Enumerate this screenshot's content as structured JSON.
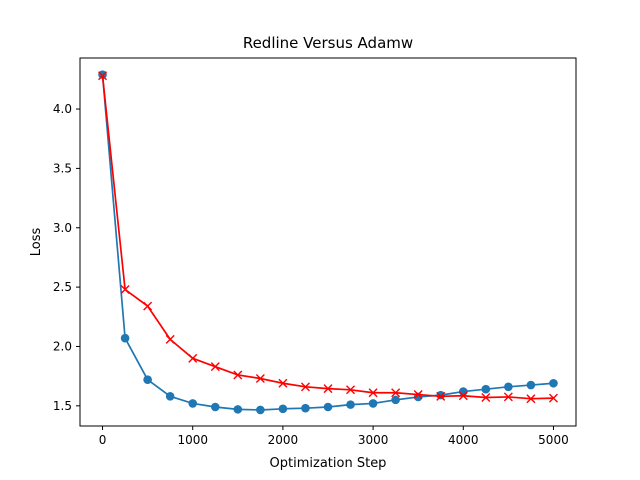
{
  "chart_data": {
    "type": "line",
    "title": "Redline Versus Adamw",
    "xlabel": "Optimization Step",
    "ylabel": "Loss",
    "xlim": [
      -250,
      5250
    ],
    "ylim": [
      1.33,
      4.43
    ],
    "xticks": [
      0,
      1000,
      2000,
      3000,
      4000,
      5000
    ],
    "yticks": [
      1.5,
      2.0,
      2.5,
      3.0,
      3.5,
      4.0
    ],
    "xtick_labels": [
      "0",
      "1000",
      "2000",
      "3000",
      "4000",
      "5000"
    ],
    "ytick_labels": [
      "1.5",
      "2.0",
      "2.5",
      "3.0",
      "3.5",
      "4.0"
    ],
    "grid": false,
    "x": [
      0,
      250,
      500,
      750,
      1000,
      1250,
      1500,
      1750,
      2000,
      2250,
      2500,
      2750,
      3000,
      3250,
      3500,
      3750,
      4000,
      4250,
      4500,
      4750,
      5000
    ],
    "series": [
      {
        "color": "#1f77b4",
        "marker": "circle",
        "values": [
          4.29,
          2.07,
          1.72,
          1.58,
          1.52,
          1.49,
          1.47,
          1.465,
          1.475,
          1.48,
          1.49,
          1.51,
          1.52,
          1.55,
          1.575,
          1.59,
          1.62,
          1.64,
          1.66,
          1.675,
          1.69
        ]
      },
      {
        "color": "#ff0000",
        "marker": "x",
        "values": [
          4.28,
          2.48,
          2.34,
          2.06,
          1.9,
          1.83,
          1.76,
          1.73,
          1.69,
          1.66,
          1.645,
          1.635,
          1.61,
          1.61,
          1.595,
          1.58,
          1.585,
          1.57,
          1.575,
          1.56,
          1.565
        ]
      }
    ]
  }
}
